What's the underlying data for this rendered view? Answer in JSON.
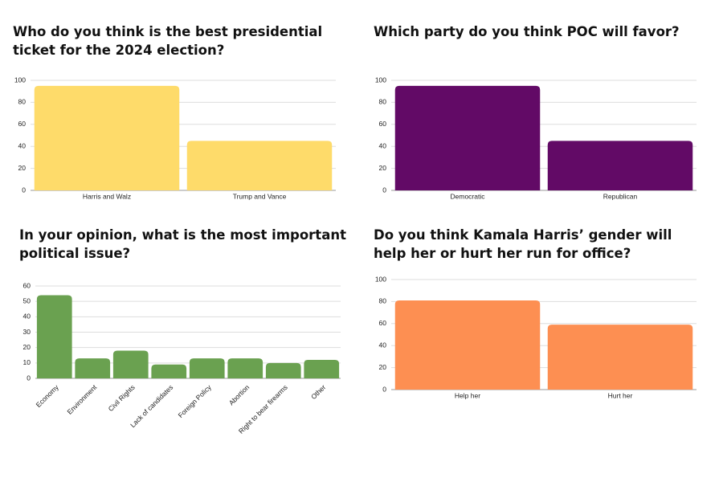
{
  "chart_data": [
    {
      "type": "bar",
      "title": "Who do you think is the best presidential ticket for the 2024 election?",
      "categories": [
        "Harris and Walz",
        "Trump and Vance"
      ],
      "values": [
        95,
        45
      ],
      "color": "#fedb6a",
      "ylim": [
        0,
        100
      ],
      "yticks": [
        0,
        20,
        40,
        60,
        80,
        100
      ],
      "grid": true
    },
    {
      "type": "bar",
      "title": "Which party do you think POC will favor?",
      "categories": [
        "Democratic",
        "Republican"
      ],
      "values": [
        95,
        45
      ],
      "color": "#620a66",
      "ylim": [
        0,
        100
      ],
      "yticks": [
        0,
        20,
        40,
        60,
        80,
        100
      ],
      "grid": true
    },
    {
      "type": "bar",
      "title": "In your opinion, what is the most important political issue?",
      "categories": [
        "Economy",
        "Environment",
        "Civil Rights",
        "Lack of candidates",
        "Foreign Policy",
        "Abortion",
        "Right to bear firearms",
        "Other"
      ],
      "values": [
        54,
        13,
        18,
        9,
        13,
        13,
        10,
        12
      ],
      "color": "#6aa150",
      "ylim": [
        0,
        60
      ],
      "yticks": [
        0,
        10,
        20,
        30,
        40,
        50,
        60
      ],
      "grid": true
    },
    {
      "type": "bar",
      "title": "Do you think Kamala Harris’ gender will help her or hurt her run for office?",
      "categories": [
        "Help her",
        "Hurt her"
      ],
      "values": [
        81,
        59
      ],
      "color": "#fd8f52",
      "ylim": [
        0,
        100
      ],
      "yticks": [
        0,
        20,
        40,
        60,
        80,
        100
      ],
      "grid": true
    }
  ]
}
